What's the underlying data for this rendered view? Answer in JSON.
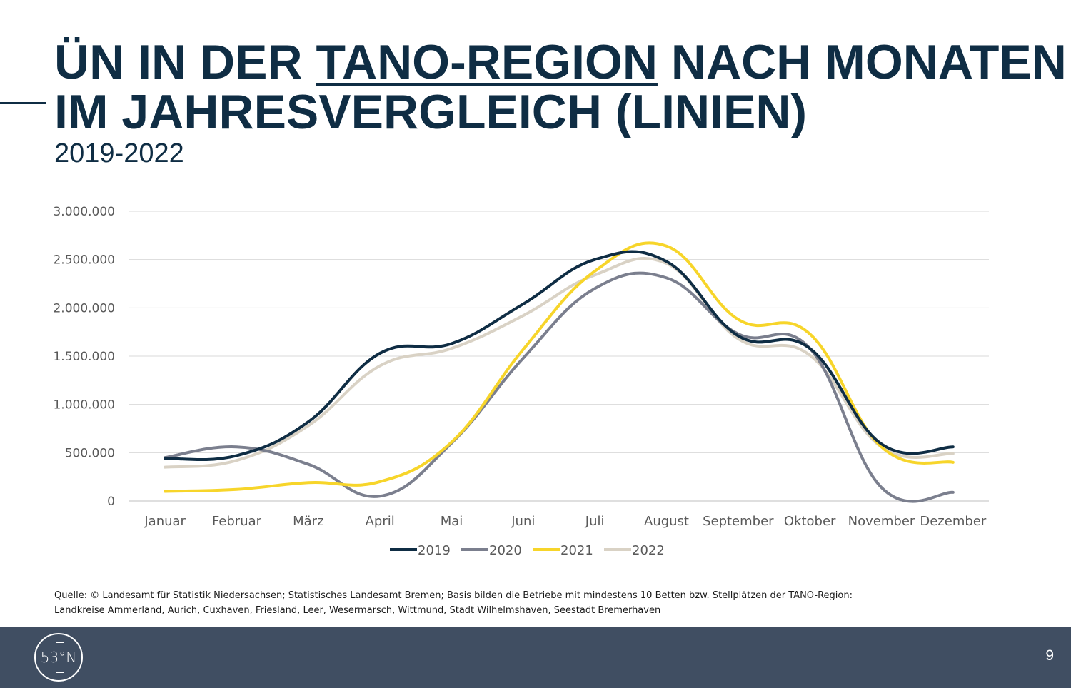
{
  "header": {
    "title_prefix": "ÜN IN DER ",
    "title_underlined": "TANO-REGION",
    "title_suffix": " NACH MONATEN",
    "title_line2": "IM JAHRESVERGLEICH (LINIEN)",
    "subtitle": "2019-2022"
  },
  "chart_data": {
    "type": "line",
    "title": "ÜN IN DER TANO-REGION NACH MONATEN IM JAHRESVERGLEICH (LINIEN)",
    "subtitle": "2019-2022",
    "xlabel": "",
    "ylabel": "",
    "categories": [
      "Januar",
      "Februar",
      "März",
      "April",
      "Mai",
      "Juni",
      "Juli",
      "August",
      "September",
      "Oktober",
      "November",
      "Dezember"
    ],
    "ylim": [
      0,
      3000000
    ],
    "yticks": [
      0,
      500000,
      1000000,
      1500000,
      2000000,
      2500000,
      3000000
    ],
    "ytick_labels": [
      "0",
      "500.000",
      "1.000.000",
      "1.500.000",
      "2.000.000",
      "2.500.000",
      "3.000.000"
    ],
    "grid": "horizontal",
    "legend": "bottom",
    "smooth": true,
    "series": [
      {
        "name": "2019",
        "color": "#0f2d44",
        "values": [
          440000,
          470000,
          820000,
          1530000,
          1630000,
          2040000,
          2500000,
          2480000,
          1710000,
          1580000,
          590000,
          560000
        ]
      },
      {
        "name": "2020",
        "color": "#7b7f8e",
        "values": [
          450000,
          560000,
          380000,
          50000,
          600000,
          1480000,
          2200000,
          2310000,
          1730000,
          1580000,
          140000,
          90000
        ]
      },
      {
        "name": "2021",
        "color": "#f7d52a",
        "values": [
          100000,
          120000,
          190000,
          200000,
          610000,
          1570000,
          2380000,
          2640000,
          1880000,
          1730000,
          560000,
          400000
        ]
      },
      {
        "name": "2022",
        "color": "#d9d2c5",
        "values": [
          350000,
          420000,
          780000,
          1400000,
          1580000,
          1920000,
          2340000,
          2460000,
          1680000,
          1510000,
          560000,
          490000
        ]
      }
    ]
  },
  "source": {
    "line1": "Quelle: © Landesamt für Statistik Niedersachsen; Statistisches Landesamt Bremen; Basis bilden die Betriebe mit mindestens 10 Betten bzw. Stellplätzen der TANO-Region:",
    "line2": "Landkreise Ammerland, Aurich, Cuxhaven, Friesland, Leer, Wesermarsch, Wittmund, Stadt Wilhelmshaven, Seestadt Bremerhaven"
  },
  "footer": {
    "logo_text": "53°N",
    "page_number": "9"
  }
}
